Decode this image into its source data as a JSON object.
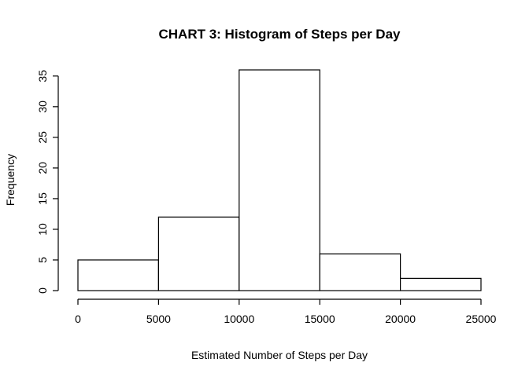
{
  "chart_data": {
    "type": "bar",
    "title": "CHART 3: Histogram of Steps per Day",
    "xlabel": "Estimated Number of Steps per Day",
    "ylabel": "Frequency",
    "bins": [
      {
        "from": 0,
        "to": 5000,
        "count": 5
      },
      {
        "from": 5000,
        "to": 10000,
        "count": 12
      },
      {
        "from": 10000,
        "to": 15000,
        "count": 36
      },
      {
        "from": 15000,
        "to": 20000,
        "count": 6
      },
      {
        "from": 20000,
        "to": 25000,
        "count": 2
      }
    ],
    "xlim": [
      0,
      25000
    ],
    "ylim": [
      0,
      36
    ],
    "x_ticks": [
      0,
      5000,
      10000,
      15000,
      20000,
      25000
    ],
    "y_ticks": [
      0,
      5,
      10,
      15,
      20,
      25,
      30,
      35
    ],
    "grid": false,
    "bar_fill": "#ffffff",
    "bar_stroke": "#000000"
  }
}
